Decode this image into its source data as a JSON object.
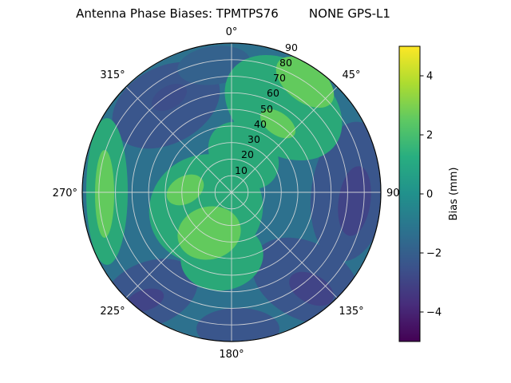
{
  "title": "Antenna Phase Biases: TPMTPS76        NONE GPS-L1",
  "chart_data": {
    "type": "heatmap",
    "projection": "polar",
    "title": "Antenna Phase Biases: TPMTPS76        NONE GPS-L1",
    "title_parts": {
      "prefix": "Antenna Phase Biases:",
      "id": "TPMTPS76",
      "antenna": "NONE",
      "signal": "GPS-L1"
    },
    "grid": true,
    "angular_ticks": {
      "labels": [
        "0°",
        "45°",
        "90",
        "135°",
        "180°",
        "225°",
        "270°",
        "315°"
      ],
      "degrees": [
        0,
        45,
        90,
        135,
        180,
        225,
        270,
        315
      ]
    },
    "radial_ticks": {
      "labels": [
        "10",
        "20",
        "30",
        "40",
        "50",
        "60",
        "70",
        "80",
        "90"
      ],
      "values": [
        10,
        20,
        30,
        40,
        50,
        60,
        70,
        80,
        90
      ]
    },
    "radial_range": [
      0,
      90
    ],
    "colorbar": {
      "label": "Bias (mm)",
      "tick_labels": [
        "4",
        "2",
        "0",
        "−2",
        "−4"
      ],
      "tick_values": [
        4,
        2,
        0,
        -2,
        -4
      ],
      "value_range": [
        -5,
        5
      ],
      "colormap": "viridis",
      "colormap_stops": [
        "#440154",
        "#472d7b",
        "#3b528b",
        "#2c728e",
        "#21918c",
        "#28ae80",
        "#5ec962",
        "#addc30",
        "#fde725"
      ]
    },
    "field_colors": {
      "background_teal": "#2d718e",
      "green": "#2aa878",
      "light_green": "#62ca5d",
      "dark_blue": "#3a568c",
      "navy": "#414487"
    },
    "approx_bias_field_mm": {
      "estimated": true,
      "angle_deg": [
        0,
        45,
        90,
        135,
        180,
        225,
        270,
        315
      ],
      "radius": [
        15,
        45,
        75
      ],
      "values_by_radius": [
        [
          0.5,
          1.0,
          0.5,
          0.5,
          1.5,
          1.5,
          1.5,
          0.5
        ],
        [
          0.0,
          2.0,
          -1.0,
          -1.5,
          1.5,
          0.5,
          1.5,
          -1.0
        ],
        [
          0.5,
          2.5,
          -1.0,
          -2.0,
          0.0,
          -2.0,
          2.0,
          0.5
        ]
      ]
    }
  }
}
